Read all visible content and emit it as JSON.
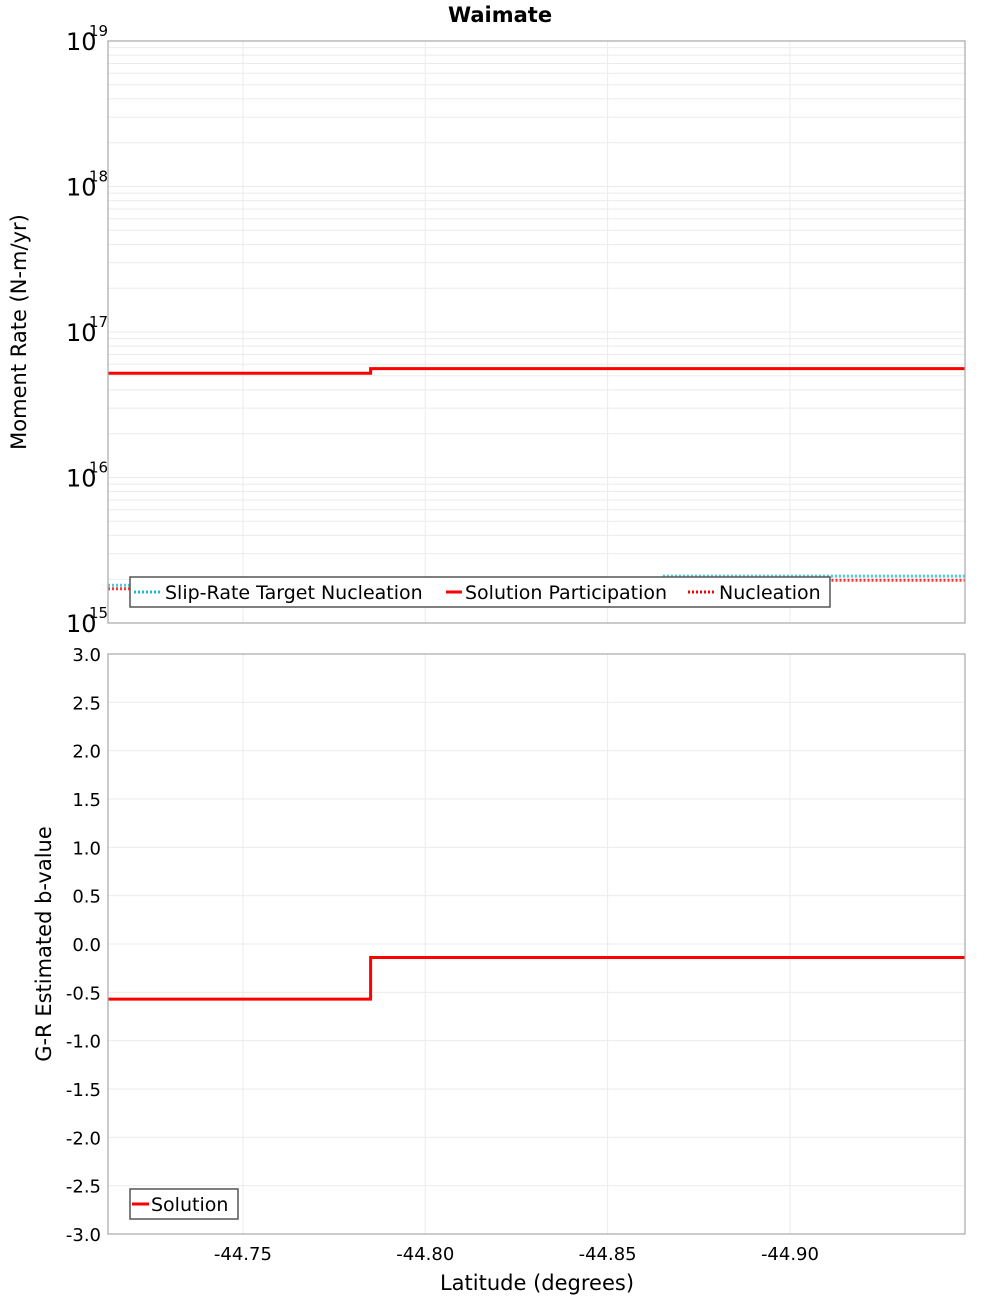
{
  "chart_data": [
    {
      "type": "line",
      "title": "Waimate",
      "xlabel": "Latitude (degrees)",
      "ylabel": "Moment Rate (N-m/yr)",
      "yscale": "log",
      "ylim": [
        1000000000000000.0,
        1e+19
      ],
      "xlim": [
        -44.713,
        -44.948
      ],
      "x_reversed": true,
      "grid": true,
      "y_ticks": [
        {
          "base": "10",
          "exp": "15",
          "value": 1000000000000000.0
        },
        {
          "base": "10",
          "exp": "16",
          "value": 1e+16
        },
        {
          "base": "10",
          "exp": "17",
          "value": 1e+17
        },
        {
          "base": "10",
          "exp": "18",
          "value": 1e+18
        },
        {
          "base": "10",
          "exp": "19",
          "value": 1e+19
        }
      ],
      "legend_position": "bottom-left inside",
      "series": [
        {
          "name": "Slip-Rate Target Nucleation",
          "style": "dotted",
          "color": "#17BECF",
          "x": [
            -44.713,
            -44.865,
            -44.865,
            -44.948
          ],
          "values": [
            1820000000000000.0,
            1820000000000000.0,
            2100000000000000.0,
            2100000000000000.0
          ]
        },
        {
          "name": "Solution Participation",
          "style": "solid",
          "color": "#FF0000",
          "x": [
            -44.713,
            -44.785,
            -44.785,
            -44.948
          ],
          "values": [
            5.2e+16,
            5.2e+16,
            5.6e+16,
            5.6e+16
          ]
        },
        {
          "name": "Nucleation",
          "style": "dotted",
          "color": "#FF0000",
          "x": [
            -44.713,
            -44.785,
            -44.785,
            -44.948
          ],
          "values": [
            1720000000000000.0,
            1720000000000000.0,
            1970000000000000.0,
            1970000000000000.0
          ]
        }
      ]
    },
    {
      "type": "line",
      "title": "",
      "xlabel": "Latitude (degrees)",
      "ylabel": "G-R Estimated b-value",
      "ylim": [
        -3.0,
        3.0
      ],
      "xlim": [
        -44.713,
        -44.948
      ],
      "x_reversed": true,
      "grid": true,
      "y_ticks": [
        "3.0",
        "2.5",
        "2.0",
        "1.5",
        "1.0",
        "0.5",
        "0.0",
        "-0.5",
        "-1.0",
        "-1.5",
        "-2.0",
        "-2.5",
        "-3.0"
      ],
      "x_ticks": [
        "-44.75",
        "-44.80",
        "-44.85",
        "-44.90"
      ],
      "legend_position": "bottom-left inside",
      "series": [
        {
          "name": "Solution",
          "style": "solid",
          "color": "#FF0000",
          "x": [
            -44.713,
            -44.785,
            -44.785,
            -44.948
          ],
          "values": [
            -0.57,
            -0.57,
            -0.14,
            -0.14
          ]
        }
      ]
    }
  ],
  "colors": {
    "solution": "#FF0000",
    "slip_rate_target": "#17BECF",
    "grid": "#EBEBEB",
    "axis_border": "#A8A8A8"
  }
}
